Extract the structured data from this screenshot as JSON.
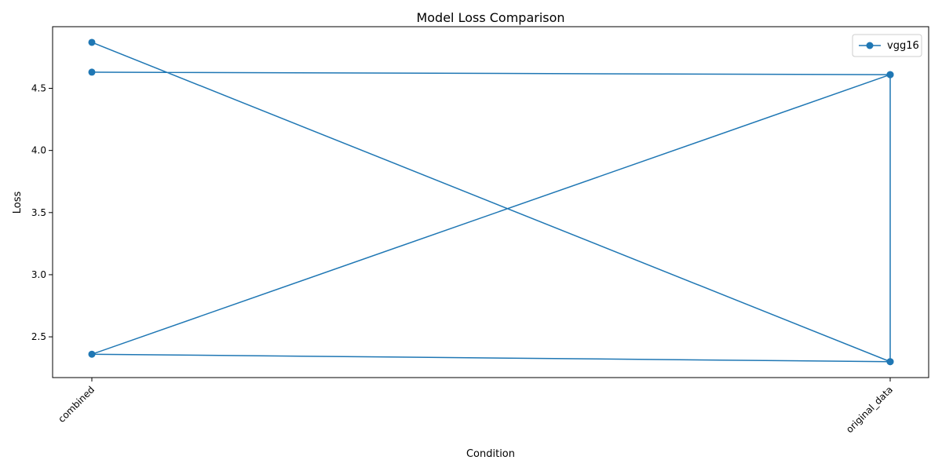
{
  "chart_data": {
    "type": "line",
    "title": "Model Loss Comparison",
    "xlabel": "Condition",
    "ylabel": "Loss",
    "categories": [
      "combined",
      "original_data"
    ],
    "yticks": [
      2.5,
      3.0,
      3.5,
      4.0,
      4.5
    ],
    "ytick_labels": [
      "2.5",
      "3.0",
      "3.5",
      "4.0",
      "4.5"
    ],
    "ylim": [
      2.172,
      4.996
    ],
    "grid": false,
    "legend_position": "top-right",
    "series": [
      {
        "name": "vgg16",
        "color": "#1f77b4",
        "marker": "circle",
        "points": [
          {
            "x": "combined",
            "y": 4.87
          },
          {
            "x": "original_data",
            "y": 2.3
          },
          {
            "x": "original_data",
            "y": 4.61
          },
          {
            "x": "combined",
            "y": 4.63
          },
          {
            "x": "original_data",
            "y": 4.61
          },
          {
            "x": "combined",
            "y": 2.36
          },
          {
            "x": "original_data",
            "y": 2.3
          }
        ]
      }
    ]
  }
}
